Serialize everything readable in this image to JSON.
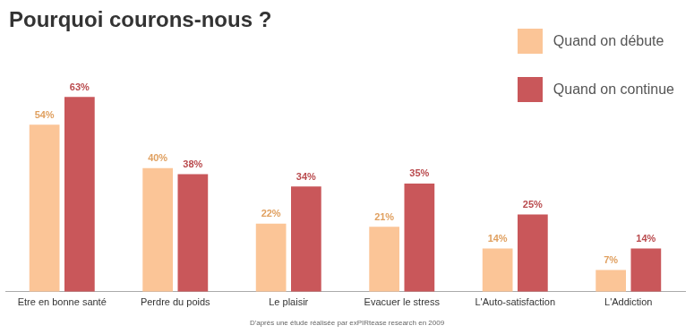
{
  "chart_data": {
    "type": "bar",
    "title": "Pourquoi courons-nous ?",
    "categories": [
      "Etre en bonne santé",
      "Perdre du poids",
      "Le plaisir",
      "Evacuer le stress",
      "L'Auto-satisfaction",
      "L'Addiction"
    ],
    "series": [
      {
        "name": "Quand on débute",
        "color": "#fbc597",
        "values": [
          54,
          40,
          22,
          21,
          14,
          7
        ],
        "value_labels": [
          "54%",
          "40%",
          "22%",
          "21%",
          "14%",
          "7%"
        ]
      },
      {
        "name": "Quand on continue",
        "color": "#c9575a",
        "values": [
          63,
          38,
          34,
          35,
          25,
          14
        ],
        "value_labels": [
          "63%",
          "38%",
          "34%",
          "35%",
          "25%",
          "14%"
        ]
      }
    ],
    "ylim": [
      0,
      70
    ],
    "grid": false,
    "legend": "upper right",
    "data_labels": true,
    "tick_labels": "x",
    "annotations": [
      "D'après une étude réalisée par exPIRtease research en 2009"
    ]
  }
}
